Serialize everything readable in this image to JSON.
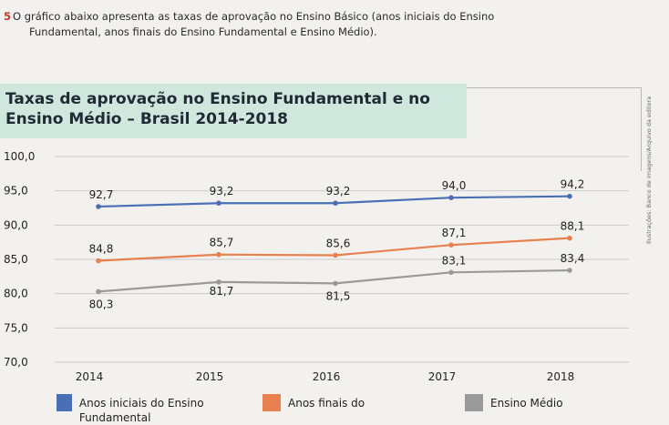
{
  "question": {
    "number": "5",
    "line1": "O gráfico abaixo apresenta as taxas de aprovação no Ensino Básico (anos iniciais do Ensino",
    "line2": "Fundamental, anos finais do Ensino Fundamental e Ensino Médio)."
  },
  "credit": "Ilustrações: Banco de imagens/Arquivo da editora",
  "chart_data": {
    "type": "line",
    "title": "Taxas de aprovação no Ensino Fundamental e no Ensino Médio – Brasil 2014-2018",
    "x": [
      "2014",
      "2015",
      "2016",
      "2017",
      "2018"
    ],
    "ylim": [
      70,
      100
    ],
    "yticks": [
      100,
      95,
      90,
      85,
      80,
      75,
      70
    ],
    "ytick_labels": [
      "100,0",
      "95,0",
      "90,0",
      "85,0",
      "80,0",
      "75,0",
      "70,0"
    ],
    "grid": true,
    "legend_position": "bottom",
    "series": [
      {
        "name": "Anos iniciais do Ensino Fundamental",
        "color": "#4a6fb5",
        "values": [
          92.7,
          93.2,
          93.2,
          94.0,
          94.2
        ],
        "labels": [
          "92,7",
          "93,2",
          "93,2",
          "94,0",
          "94,2"
        ]
      },
      {
        "name": "Anos finais do Ensino Fundamental",
        "color": "#e8804f",
        "values": [
          84.8,
          85.7,
          85.6,
          87.1,
          88.1
        ],
        "labels": [
          "84,8",
          "85,7",
          "85,6",
          "87,1",
          "88,1"
        ]
      },
      {
        "name": "Ensino Médio",
        "color": "#9a9a9a",
        "values": [
          80.3,
          81.7,
          81.5,
          83.1,
          83.4
        ],
        "labels": [
          "80,3",
          "81,7",
          "81,5",
          "83,1",
          "83,4"
        ]
      }
    ]
  },
  "legend": [
    {
      "label": "Anos iniciais do Ensino Fundamental",
      "color": "#4a6fb5"
    },
    {
      "label": "Anos finais do",
      "color": "#e8804f"
    },
    {
      "label": "Ensino Médio",
      "color": "#9a9a9a"
    }
  ]
}
